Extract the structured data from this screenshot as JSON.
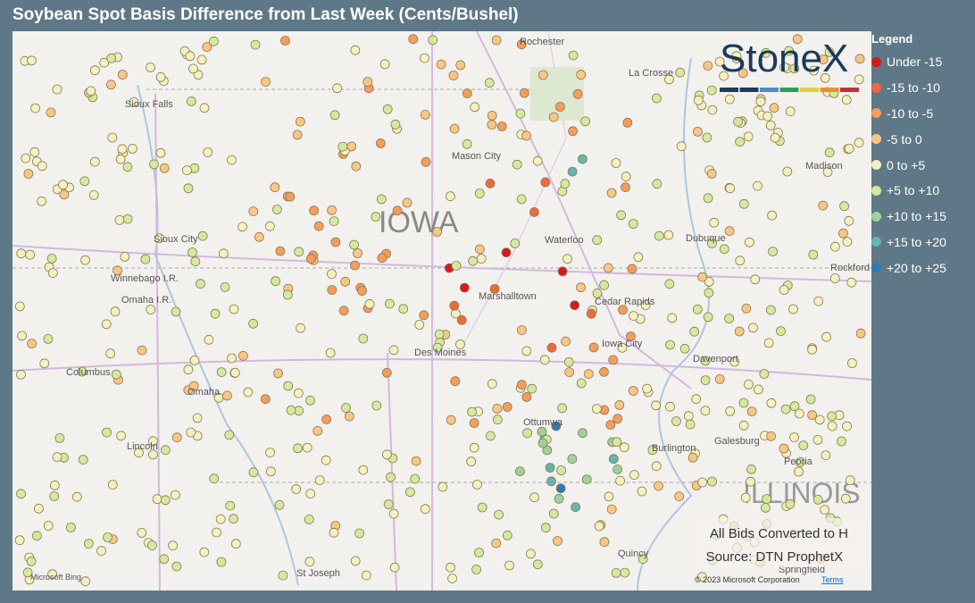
{
  "header": {
    "title": "Soybean Spot Basis Difference from Last Week (Cents/Bushel)"
  },
  "legend": {
    "title": "Legend",
    "items": [
      {
        "label": "Under -15",
        "color": "#d7191c"
      },
      {
        "label": "-15 to -10",
        "color": "#ef6a3a"
      },
      {
        "label": "-10 to -5",
        "color": "#f59d5a"
      },
      {
        "label": "-5 to 0",
        "color": "#f9c784"
      },
      {
        "label": "0 to +5",
        "color": "#f3f1c0"
      },
      {
        "label": "+5 to +10",
        "color": "#d3ea9e"
      },
      {
        "label": "+10 to +15",
        "color": "#9dd39a"
      },
      {
        "label": "+15 to +20",
        "color": "#63b5b0"
      },
      {
        "label": "+20 to +25",
        "color": "#2c7bb6"
      }
    ]
  },
  "map": {
    "state_labels": [
      "IOWA",
      "ILLINOIS"
    ],
    "cities": [
      "Rochester",
      "La Crosse",
      "Sioux Falls",
      "Mason City",
      "Madison",
      "Waterloo",
      "Dubuque",
      "Sioux City",
      "Rockford",
      "Winnebago I.R.",
      "Omaha I.R.",
      "Marshalltown",
      "Cedar Rapids",
      "Iowa City",
      "Davenport",
      "Des Moines",
      "Columbus",
      "Omaha",
      "Lincoln",
      "Ottumwa",
      "Burlington",
      "Galesburg",
      "Peoria",
      "Quincy",
      "St Joseph",
      "Springfield"
    ],
    "notes": [
      "All Bids Converted to H",
      "Source: DTN ProphetX"
    ],
    "brand": "StoneX",
    "attribution": "Microsoft Bing",
    "copyright": "© 2023 Microsoft Corporation",
    "terms": "Terms"
  }
}
